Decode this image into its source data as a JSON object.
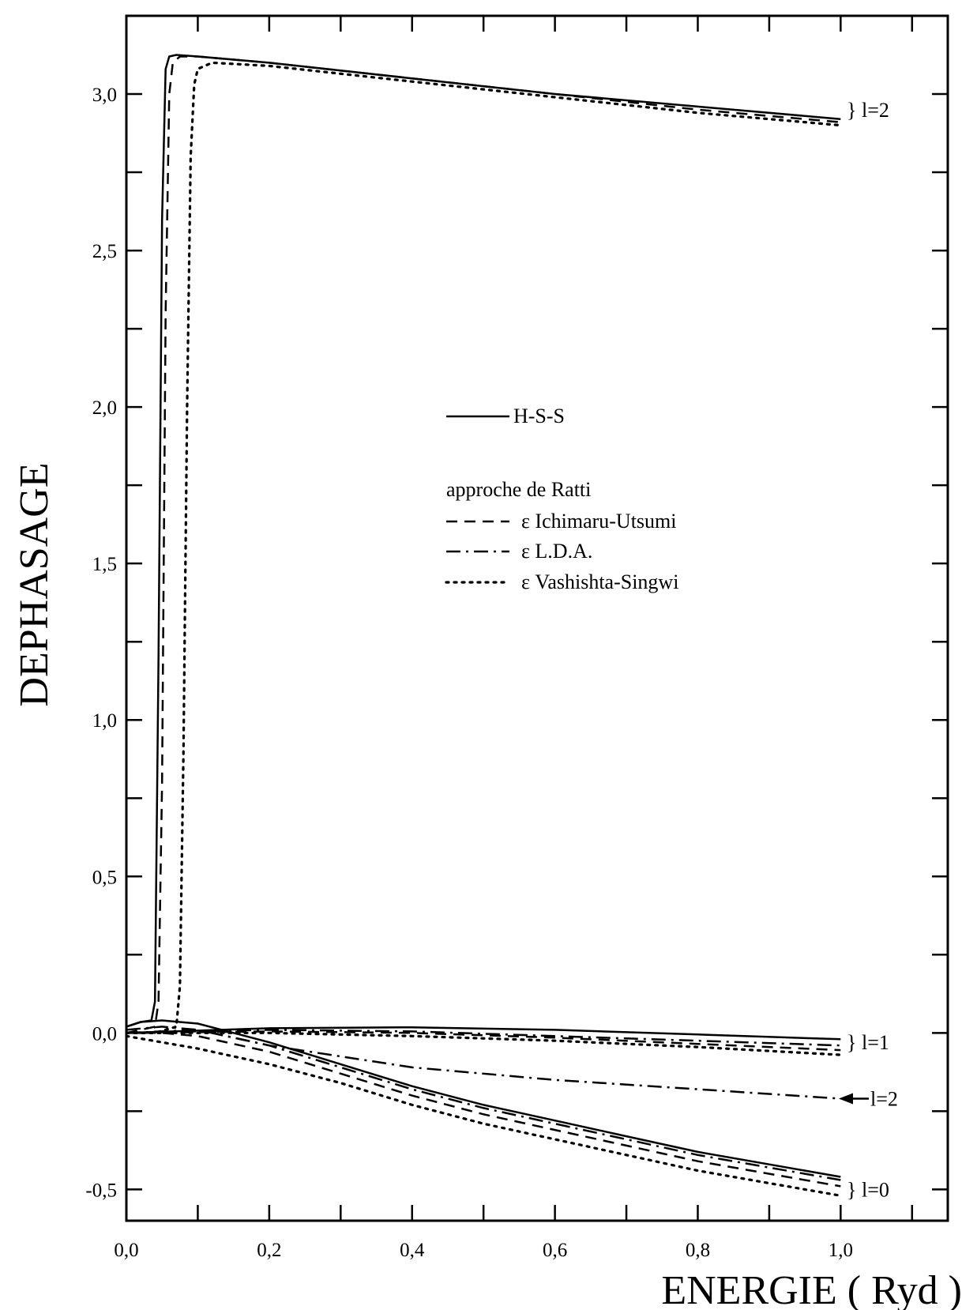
{
  "chart_data": {
    "type": "line",
    "xlabel": "ENERGIE ( Ryd )",
    "ylabel": "DEPHASAGE",
    "xlim": [
      0.0,
      1.15
    ],
    "ylim": [
      -0.6,
      3.25
    ],
    "x_ticks": [
      0.0,
      0.2,
      0.4,
      0.6,
      0.8,
      1.0
    ],
    "x_tick_labels": [
      "0,0",
      "0,2",
      "0,4",
      "0,6",
      "0,8",
      "1,0"
    ],
    "y_ticks": [
      -0.5,
      0.0,
      0.5,
      1.0,
      1.5,
      2.0,
      2.5,
      3.0
    ],
    "y_tick_labels": [
      "-0,5",
      "0,0",
      "0,5",
      "1,0",
      "1,5",
      "2,0",
      "2,5",
      "3,0"
    ],
    "grid": false,
    "legend": {
      "placement": "center-right",
      "entries": [
        {
          "style": "solid",
          "label": "H-S-S"
        },
        {
          "style": "none",
          "label": "approche de Ratti"
        },
        {
          "style": "dashed",
          "label": "ε Ichimaru-Utsumi"
        },
        {
          "style": "dashdot",
          "label": "ε L.D.A."
        },
        {
          "style": "dotted",
          "label": "ε Vashishta-Singwi"
        }
      ]
    },
    "annotations": [
      {
        "text": "} l=2",
        "y": 2.95
      },
      {
        "text": "} l=1",
        "y": -0.03
      },
      {
        "text": "l=2",
        "y": -0.21,
        "arrow": true
      },
      {
        "text": "} l=0",
        "y": -0.5
      }
    ],
    "series": [
      {
        "style": "solid",
        "group": "l=2 resonance",
        "x": [
          0.0,
          0.02,
          0.035,
          0.04,
          0.045,
          0.05,
          0.055,
          0.06,
          0.07,
          0.1,
          0.2,
          0.4,
          0.6,
          0.8,
          1.0
        ],
        "y": [
          0.02,
          0.035,
          0.04,
          0.1,
          1.2,
          2.6,
          3.08,
          3.12,
          3.125,
          3.12,
          3.1,
          3.05,
          3.0,
          2.96,
          2.92
        ]
      },
      {
        "style": "dashed",
        "group": "l=2 resonance",
        "x": [
          0.0,
          0.02,
          0.04,
          0.045,
          0.05,
          0.055,
          0.06,
          0.065,
          0.075,
          0.1,
          0.2,
          0.4,
          0.6,
          0.8,
          1.0
        ],
        "y": [
          0.0,
          0.01,
          0.02,
          0.1,
          0.8,
          2.3,
          3.0,
          3.1,
          3.12,
          3.12,
          3.1,
          3.05,
          3.0,
          2.95,
          2.91
        ]
      },
      {
        "style": "dotted",
        "group": "l=2 resonance",
        "x": [
          0.0,
          0.04,
          0.07,
          0.075,
          0.08,
          0.085,
          0.09,
          0.095,
          0.1,
          0.12,
          0.2,
          0.4,
          0.6,
          0.8,
          1.0
        ],
        "y": [
          0.0,
          0.0,
          0.02,
          0.15,
          0.9,
          2.0,
          2.8,
          3.03,
          3.08,
          3.1,
          3.09,
          3.04,
          2.99,
          2.94,
          2.9
        ]
      },
      {
        "style": "solid",
        "group": "l=1",
        "x": [
          0.0,
          0.2,
          0.4,
          0.6,
          0.8,
          1.0
        ],
        "y": [
          0.0,
          0.015,
          0.018,
          0.01,
          -0.005,
          -0.02
        ]
      },
      {
        "style": "dashdot",
        "group": "l=1",
        "x": [
          0.0,
          0.2,
          0.4,
          0.6,
          0.8,
          1.0
        ],
        "y": [
          0.0,
          0.01,
          0.005,
          -0.01,
          -0.025,
          -0.04
        ]
      },
      {
        "style": "dashed",
        "group": "l=1",
        "x": [
          0.0,
          0.2,
          0.4,
          0.6,
          0.8,
          1.0
        ],
        "y": [
          0.0,
          0.005,
          0.0,
          -0.015,
          -0.035,
          -0.055
        ]
      },
      {
        "style": "dotted",
        "group": "l=1",
        "x": [
          0.0,
          0.2,
          0.4,
          0.6,
          0.8,
          1.0
        ],
        "y": [
          0.0,
          0.0,
          -0.01,
          -0.025,
          -0.045,
          -0.07
        ]
      },
      {
        "style": "dashdot",
        "group": "l=2 LDA",
        "x": [
          0.0,
          0.1,
          0.2,
          0.4,
          0.6,
          0.8,
          1.0
        ],
        "y": [
          0.0,
          0.01,
          -0.04,
          -0.11,
          -0.15,
          -0.18,
          -0.21
        ]
      },
      {
        "style": "solid",
        "group": "l=0",
        "x": [
          0.0,
          0.02,
          0.05,
          0.1,
          0.15,
          0.2,
          0.3,
          0.4,
          0.5,
          0.6,
          0.7,
          0.8,
          0.9,
          1.0
        ],
        "y": [
          0.02,
          0.035,
          0.04,
          0.03,
          0.0,
          -0.03,
          -0.1,
          -0.17,
          -0.23,
          -0.28,
          -0.33,
          -0.38,
          -0.42,
          -0.46
        ]
      },
      {
        "style": "dashdot",
        "group": "l=0",
        "x": [
          0.0,
          0.05,
          0.1,
          0.2,
          0.3,
          0.4,
          0.5,
          0.6,
          0.7,
          0.8,
          0.9,
          1.0
        ],
        "y": [
          0.01,
          0.02,
          0.01,
          -0.04,
          -0.11,
          -0.18,
          -0.24,
          -0.29,
          -0.34,
          -0.39,
          -0.43,
          -0.47
        ]
      },
      {
        "style": "dashed",
        "group": "l=0",
        "x": [
          0.0,
          0.05,
          0.1,
          0.2,
          0.3,
          0.4,
          0.5,
          0.6,
          0.7,
          0.8,
          0.9,
          1.0
        ],
        "y": [
          0.0,
          0.0,
          -0.01,
          -0.06,
          -0.13,
          -0.2,
          -0.26,
          -0.31,
          -0.36,
          -0.41,
          -0.45,
          -0.49
        ]
      },
      {
        "style": "dotted",
        "group": "l=0",
        "x": [
          0.0,
          0.05,
          0.1,
          0.2,
          0.3,
          0.4,
          0.5,
          0.6,
          0.7,
          0.8,
          0.9,
          1.0
        ],
        "y": [
          -0.01,
          -0.03,
          -0.05,
          -0.1,
          -0.16,
          -0.23,
          -0.29,
          -0.34,
          -0.39,
          -0.44,
          -0.48,
          -0.52
        ]
      }
    ]
  }
}
